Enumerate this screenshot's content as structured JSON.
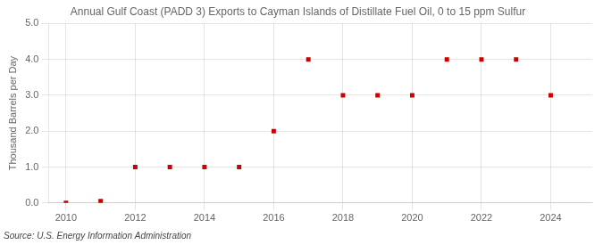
{
  "chart_data": {
    "type": "scatter",
    "title": "Annual Gulf Coast (PADD 3) Exports to Cayman Islands of Distillate Fuel Oil, 0 to 15 ppm Sulfur",
    "ylabel": "Thousand Barrels per Day",
    "annotations": [
      "Source: U.S. Energy Information Administration"
    ],
    "x": [
      2010,
      2011,
      2012,
      2013,
      2014,
      2015,
      2016,
      2017,
      2018,
      2019,
      2020,
      2021,
      2022,
      2023,
      2024
    ],
    "values": [
      0.0,
      0.05,
      1.0,
      1.0,
      1.0,
      1.0,
      2.0,
      4.0,
      3.0,
      3.0,
      3.0,
      4.0,
      4.0,
      4.0,
      3.0
    ],
    "color": "#cc0000",
    "marker": "square",
    "xlim": [
      2009.5,
      2025.2
    ],
    "xticks": [
      2010,
      2012,
      2014,
      2016,
      2018,
      2020,
      2022,
      2024
    ],
    "ylim": [
      0.0,
      5.0
    ],
    "yticks": [
      {
        "value": 0.0,
        "label": "0.0"
      },
      {
        "value": 1.0,
        "label": "1.0"
      },
      {
        "value": 2.0,
        "label": "2.0"
      },
      {
        "value": 3.0,
        "label": "3.0"
      },
      {
        "value": 4.0,
        "label": "4.0"
      },
      {
        "value": 5.0,
        "label": "5.0"
      }
    ],
    "grid": true
  }
}
